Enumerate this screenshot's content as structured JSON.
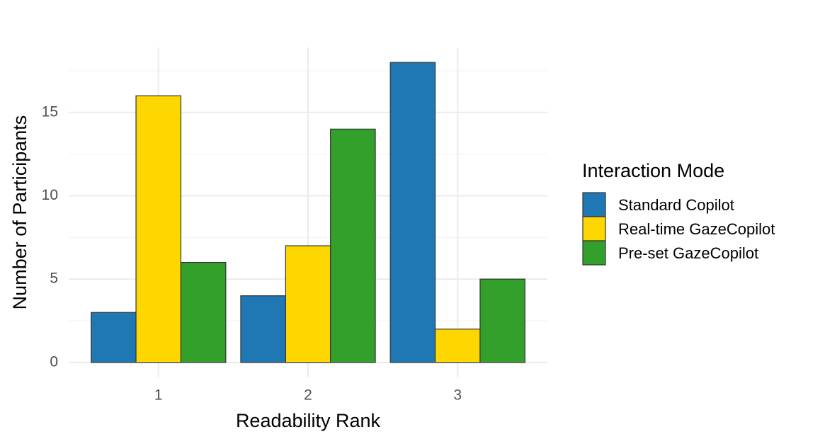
{
  "chart_data": {
    "type": "bar",
    "x_label": "Readability Rank",
    "y_label": "Number of Participants",
    "categories": [
      "1",
      "2",
      "3"
    ],
    "series": [
      {
        "name": "Standard Copilot",
        "color": "#1f77b4",
        "values": [
          3,
          4,
          18
        ]
      },
      {
        "name": "Real-time GazeCopilot",
        "color": "#ffd700",
        "values": [
          16,
          7,
          2
        ]
      },
      {
        "name": "Pre-set GazeCopilot",
        "color": "#33a02c",
        "values": [
          6,
          14,
          5
        ]
      }
    ],
    "legend_title": "Interaction Mode",
    "legend_position": "right",
    "ylim": [
      -0.9,
      18.9
    ],
    "yticks": [
      0,
      5,
      10,
      15
    ],
    "minor_yticks": [
      2.5,
      7.5,
      12.5,
      17.5
    ],
    "grid": true
  }
}
